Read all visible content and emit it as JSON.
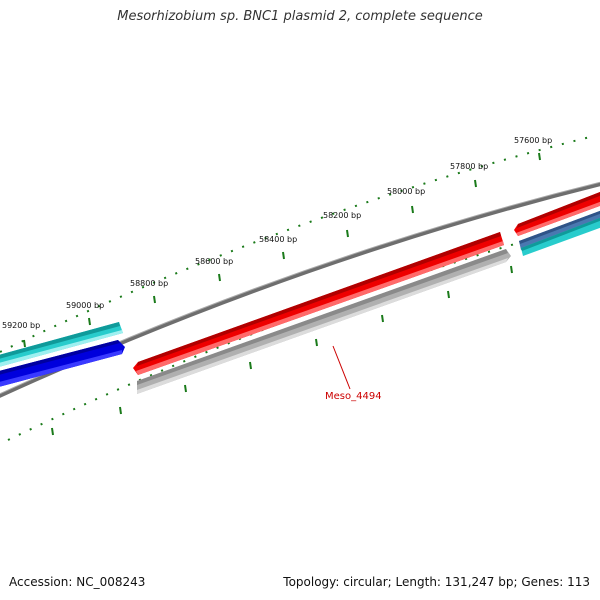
{
  "title": "Mesorhizobium sp. BNC1 plasmid 2, complete sequence",
  "footer": {
    "accession": "Accession: NC_008243",
    "topology": "Topology: circular; Length: 131,247 bp; Genes: 113"
  },
  "scale_labels": [
    "57600 bp",
    "57800 bp",
    "58000 bp",
    "58200 bp",
    "58400 bp",
    "58600 bp",
    "58800 bp",
    "59000 bp",
    "59200 bp"
  ],
  "gene_label": "Meso_4494",
  "colors": {
    "backbone": "#777777",
    "tick": "#1a7a1a",
    "label_red": "#cc0000",
    "gene_red": "#ee0000",
    "gene_gray": "#b5b5b5",
    "gene_blue": "#0000dd",
    "gene_cyan": "#22cccc",
    "gene_steel": "#4a78b0"
  }
}
